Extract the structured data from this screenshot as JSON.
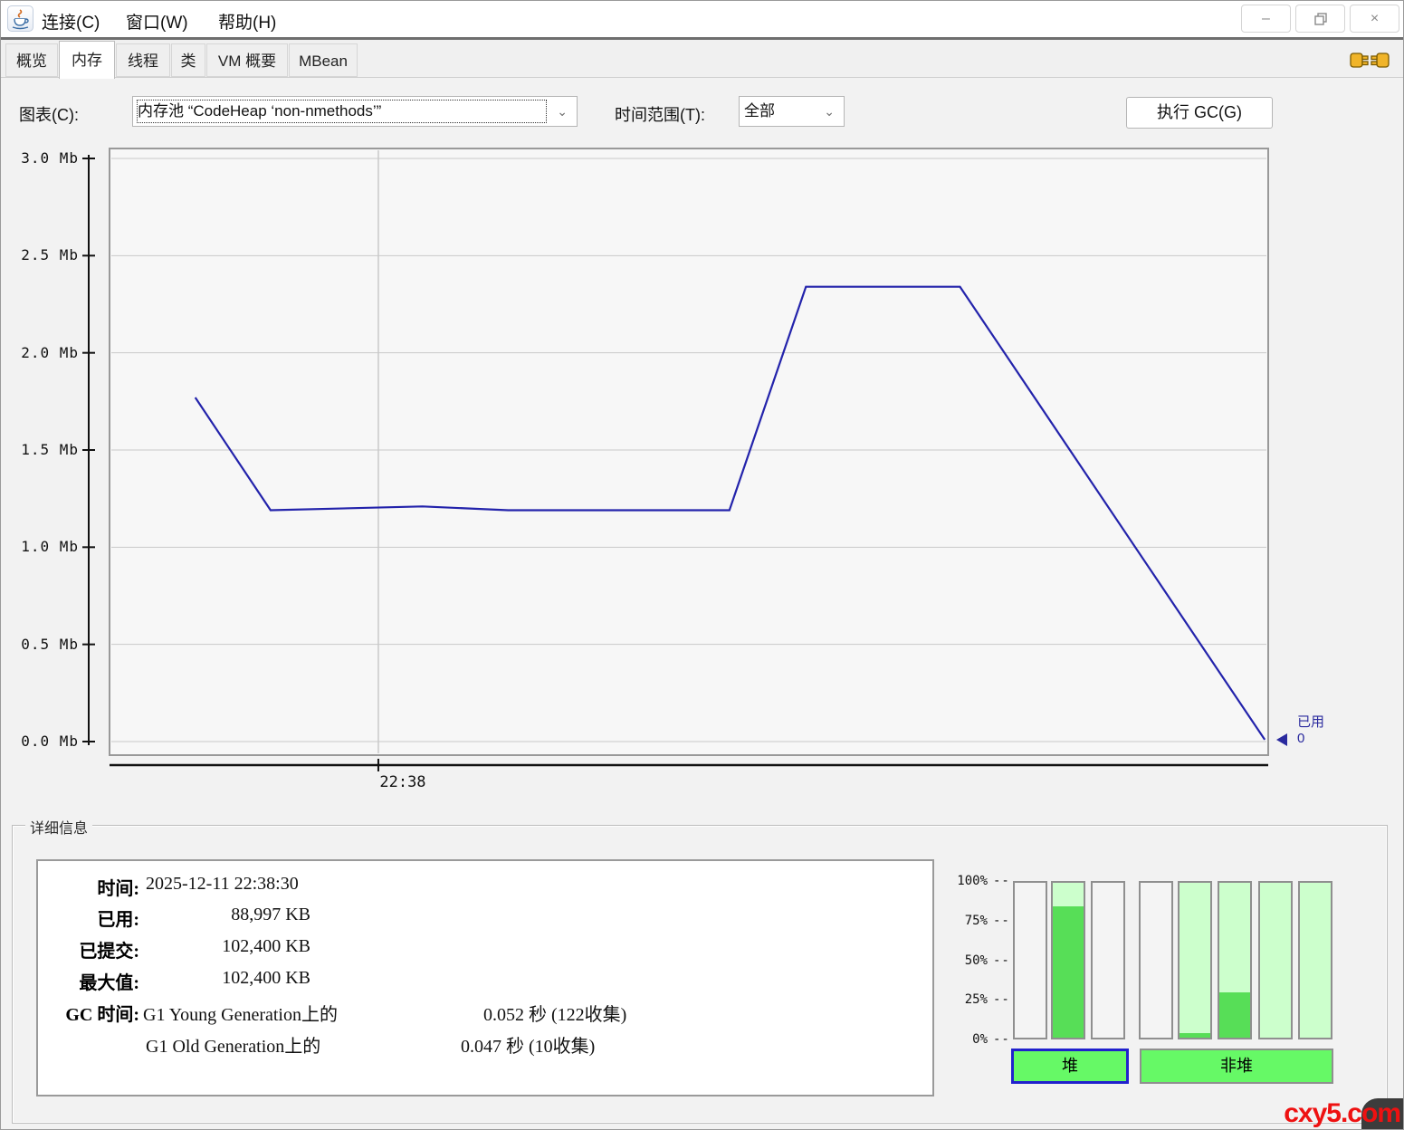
{
  "window": {
    "menu": [
      {
        "label": "连接(C)"
      },
      {
        "label": "窗口(W)"
      },
      {
        "label": "帮助(H)"
      }
    ],
    "controls": {
      "minimize": "–",
      "close": "×"
    }
  },
  "tabs": [
    {
      "label": "概览",
      "active": false
    },
    {
      "label": "内存",
      "active": true
    },
    {
      "label": "线程",
      "active": false
    },
    {
      "label": "类",
      "active": false
    },
    {
      "label": "VM 概要",
      "active": false
    },
    {
      "label": "MBean",
      "active": false
    }
  ],
  "toolbar": {
    "chart_label": "图表(C):",
    "chart_value": "内存池 “CodeHeap ‘non-nmethods’”",
    "time_label": "时间范围(T):",
    "time_value": "全部",
    "gc_button": "执行 GC(G)"
  },
  "chart_data": [
    {
      "type": "line",
      "title": "内存池 CodeHeap non-nmethods 已用内存",
      "ylabel": "Mb",
      "ylim": [
        0,
        3.0
      ],
      "y_ticks": [
        "3.0 Mb",
        "2.5 Mb",
        "2.0 Mb",
        "1.5 Mb",
        "1.0 Mb",
        "0.5 Mb",
        "0.0 Mb"
      ],
      "x_tick": {
        "label": "22:38",
        "fraction": 0.232
      },
      "grid": true,
      "series": [
        {
          "name": "已用",
          "color": "#2323ab",
          "points_x_fraction": [
            0.074,
            0.139,
            0.27,
            0.344,
            0.535,
            0.601,
            0.734,
            0.997
          ],
          "points_y_mb": [
            1.77,
            1.19,
            1.21,
            1.19,
            1.19,
            2.34,
            2.34,
            0.01
          ]
        }
      ],
      "legend": {
        "position": "right",
        "label": "已用",
        "value": "0"
      }
    },
    {
      "type": "bar",
      "title": "内存使用率",
      "y_ticks": [
        "100%",
        "75%",
        "50%",
        "25%",
        "0%"
      ],
      "tick_dash": "--",
      "groups": [
        {
          "label": "堆",
          "bars": [
            {
              "committed": false,
              "used_pct": 0
            },
            {
              "committed": true,
              "used_pct": 85
            },
            {
              "committed": false,
              "used_pct": 0
            }
          ]
        },
        {
          "label": "非堆",
          "bars": [
            {
              "committed": false,
              "used_pct": 0
            },
            {
              "committed": true,
              "used_pct": 3
            },
            {
              "committed": true,
              "used_pct": 29
            },
            {
              "committed": true,
              "used_pct": 0
            },
            {
              "committed": true,
              "used_pct": 0
            }
          ]
        }
      ]
    }
  ],
  "details": {
    "group_title": "详细信息",
    "rows": [
      {
        "label": "时间:",
        "value": "2025-12-11 22:38:30",
        "value2": ""
      },
      {
        "label": "已用:",
        "value": "88,997 KB",
        "value2": ""
      },
      {
        "label": "已提交:",
        "value": "102,400 KB",
        "value2": ""
      },
      {
        "label": "最大值:",
        "value": "102,400 KB",
        "value2": ""
      },
      {
        "label": "GC 时间:",
        "value": "G1 Young Generation上的",
        "value2": "0.052 秒 (122收集)"
      },
      {
        "label": "",
        "value": "G1 Old Generation上的",
        "value2": "0.047 秒 (10收集)"
      }
    ],
    "heap_button": "堆",
    "nonheap_button": "非堆"
  },
  "watermark": "cxy5.com"
}
